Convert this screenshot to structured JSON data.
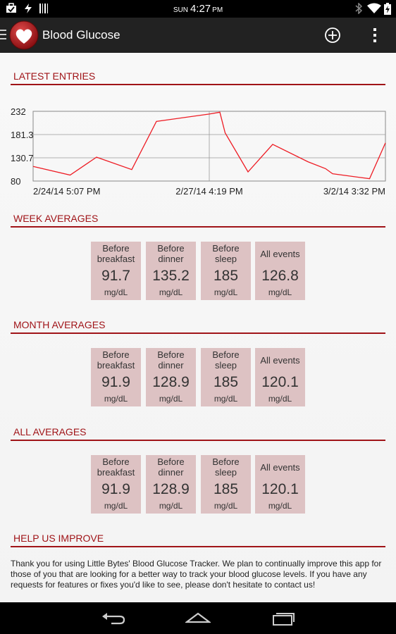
{
  "status_bar": {
    "day": "SUN",
    "time": "4:27",
    "ampm": "PM"
  },
  "app": {
    "title": "Blood Glucose",
    "brand_color": "#a01418",
    "tile_color": "#ddc2c3"
  },
  "latest_entries": {
    "title": "LATEST ENTRIES",
    "chart_data": {
      "type": "line",
      "title": "",
      "y_tick_labels": [
        "232",
        "181.3",
        "130.7",
        "80"
      ],
      "x_tick_labels": [
        "2/24/14 5:07 PM",
        "2/27/14 4:19 PM",
        "3/2/14 3:32 PM"
      ],
      "ylim": [
        80,
        232
      ],
      "grid": true,
      "series": [
        {
          "values": [
            112,
            93,
            132,
            105,
            210,
            226,
            230,
            185,
            100,
            160,
            122,
            96,
            107,
            85,
            163
          ]
        }
      ]
    }
  },
  "week": {
    "title": "WEEK AVERAGES",
    "tiles": [
      {
        "label": "Before breakfast",
        "value": "91.7",
        "unit": "mg/dL"
      },
      {
        "label": "Before dinner",
        "value": "135.2",
        "unit": "mg/dL"
      },
      {
        "label": "Before sleep",
        "value": "185",
        "unit": "mg/dL"
      },
      {
        "label": "All events",
        "value": "126.8",
        "unit": "mg/dL"
      }
    ]
  },
  "month": {
    "title": "MONTH AVERAGES",
    "tiles": [
      {
        "label": "Before breakfast",
        "value": "91.9",
        "unit": "mg/dL"
      },
      {
        "label": "Before dinner",
        "value": "128.9",
        "unit": "mg/dL"
      },
      {
        "label": "Before sleep",
        "value": "185",
        "unit": "mg/dL"
      },
      {
        "label": "All events",
        "value": "120.1",
        "unit": "mg/dL"
      }
    ]
  },
  "all": {
    "title": "ALL AVERAGES",
    "tiles": [
      {
        "label": "Before breakfast",
        "value": "91.9",
        "unit": "mg/dL"
      },
      {
        "label": "Before dinner",
        "value": "128.9",
        "unit": "mg/dL"
      },
      {
        "label": "Before sleep",
        "value": "185",
        "unit": "mg/dL"
      },
      {
        "label": "All events",
        "value": "120.1",
        "unit": "mg/dL"
      }
    ]
  },
  "help": {
    "title": "HELP US IMPROVE",
    "text": "Thank you for using Little Bytes' Blood Glucose Tracker. We plan to continually improve this app for those of you that are looking for a better way to track your blood glucose levels. If you have any requests for features or fixes you'd like to see, please don't hesitate to contact us!"
  }
}
